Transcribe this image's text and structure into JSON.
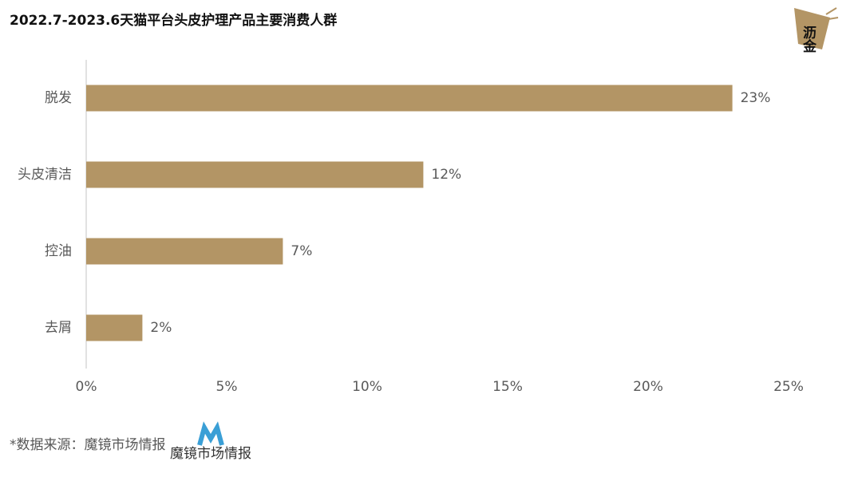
{
  "chart_data": {
    "type": "hbar",
    "title": "2022.7-2023.6天猫平台头皮护理产品主要消费人群",
    "categories": [
      "脱发",
      "头皮清洁",
      "控油",
      "去屑"
    ],
    "values": [
      23,
      12,
      7,
      2
    ],
    "value_labels": [
      "23%",
      "12%",
      "7%",
      "2%"
    ],
    "color": "#b39565",
    "xlim": [
      0,
      25
    ],
    "xticks": [
      {
        "value": 0,
        "label": "0%"
      },
      {
        "value": 5,
        "label": "5%"
      },
      {
        "value": 10,
        "label": "10%"
      },
      {
        "value": 15,
        "label": "15%"
      },
      {
        "value": 20,
        "label": "20%"
      },
      {
        "value": 25,
        "label": "25%"
      }
    ],
    "grid": false
  },
  "footer": {
    "source": "*数据来源：魔镜市场情报",
    "source_logo": "魔镜市场情报"
  },
  "brand": {
    "logo": "沥金"
  }
}
